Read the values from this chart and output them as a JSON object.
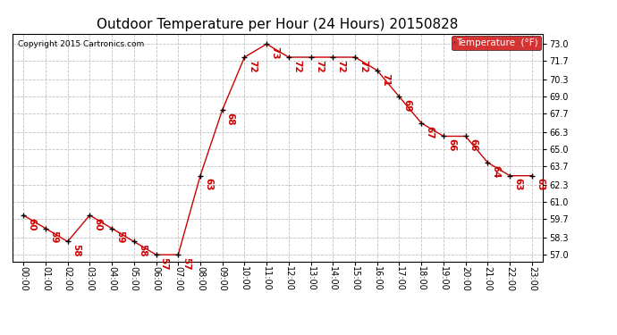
{
  "title": "Outdoor Temperature per Hour (24 Hours) 20150828",
  "copyright": "Copyright 2015 Cartronics.com",
  "legend_label": "Temperature  (°F)",
  "hours": [
    0,
    1,
    2,
    3,
    4,
    5,
    6,
    7,
    8,
    9,
    10,
    11,
    12,
    13,
    14,
    15,
    16,
    17,
    18,
    19,
    20,
    21,
    22,
    23
  ],
  "temps": [
    60,
    59,
    58,
    60,
    59,
    58,
    57,
    57,
    63,
    68,
    72,
    73,
    72,
    72,
    72,
    72,
    71,
    69,
    67,
    66,
    66,
    64,
    63,
    63
  ],
  "x_labels": [
    "00:00",
    "01:00",
    "02:00",
    "03:00",
    "04:00",
    "05:00",
    "06:00",
    "07:00",
    "08:00",
    "09:00",
    "10:00",
    "11:00",
    "12:00",
    "13:00",
    "14:00",
    "15:00",
    "16:00",
    "17:00",
    "18:00",
    "19:00",
    "20:00",
    "21:00",
    "22:00",
    "23:00"
  ],
  "y_ticks": [
    57.0,
    58.3,
    59.7,
    61.0,
    62.3,
    63.7,
    65.0,
    66.3,
    67.7,
    69.0,
    70.3,
    71.7,
    73.0
  ],
  "ylim": [
    56.5,
    73.8
  ],
  "xlim": [
    -0.5,
    23.5
  ],
  "line_color": "#cc0000",
  "marker_color": "#000000",
  "label_color": "#cc0000",
  "bg_color": "#ffffff",
  "grid_color": "#c0c0c0",
  "title_fontsize": 11,
  "tick_fontsize": 7,
  "annotation_fontsize": 7.5,
  "copyright_fontsize": 6.5,
  "legend_bg": "#cc0000",
  "legend_fg": "#ffffff",
  "legend_fontsize": 7.5
}
